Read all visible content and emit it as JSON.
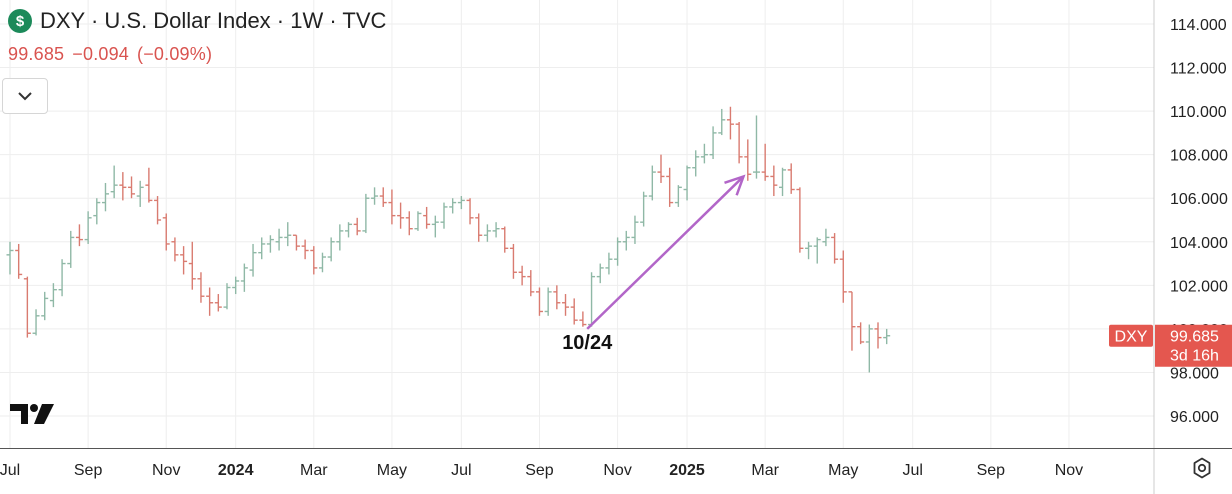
{
  "header": {
    "symbol_icon": "dollar-icon",
    "title": "DXY · U.S. Dollar Index · 1W · TVC",
    "price": "99.685",
    "change": "−0.094",
    "change_pct": "(−0.09%)"
  },
  "controls": {
    "collapse_icon": "chevron-down-icon",
    "settings_icon": "gear-icon",
    "logo_icon": "tradingview-logo-icon"
  },
  "price_tag": {
    "symbol": "DXY",
    "value": "99.685",
    "countdown": "3d 16h"
  },
  "colors": {
    "up": "#8fb8a6",
    "down": "#d97b70",
    "annotation": "#b266c8",
    "grid": "#eeeeee",
    "tag_red": "#e4574f"
  },
  "chart_data": {
    "type": "bar",
    "title": "DXY · U.S. Dollar Index · 1W · TVC",
    "y_ticks": [
      "114.000",
      "112.000",
      "110.000",
      "108.000",
      "106.000",
      "104.000",
      "102.000",
      "100.000",
      "98.000",
      "96.000"
    ],
    "ylim": [
      94.9,
      115.1
    ],
    "x_ticks": [
      "Jul",
      "Sep",
      "Nov",
      "2024",
      "Mar",
      "May",
      "Jul",
      "Sep",
      "Nov",
      "2025",
      "Mar",
      "May",
      "Jul",
      "Sep",
      "Nov"
    ],
    "x_bold": [
      "2024",
      "2025"
    ],
    "x_tick_weeks": [
      0,
      9,
      18,
      26,
      35,
      44,
      52,
      61,
      70,
      78,
      87,
      96,
      104,
      113,
      122
    ],
    "series": [
      {
        "values": [
          [
            0,
            103.4,
            104.0,
            102.5,
            103.6
          ],
          [
            1,
            103.6,
            103.9,
            102.3,
            102.5
          ],
          [
            2,
            102.3,
            102.4,
            99.6,
            99.8
          ],
          [
            3,
            99.8,
            100.9,
            99.7,
            100.6
          ],
          [
            4,
            100.6,
            101.7,
            100.4,
            101.4
          ],
          [
            5,
            101.3,
            102.1,
            101.0,
            101.8
          ],
          [
            6,
            101.8,
            103.2,
            101.5,
            103.0
          ],
          [
            7,
            103.0,
            104.5,
            102.8,
            104.2
          ],
          [
            8,
            104.2,
            104.8,
            103.8,
            104.1
          ],
          [
            9,
            104.1,
            105.4,
            103.9,
            105.1
          ],
          [
            10,
            105.2,
            106.0,
            104.8,
            105.8
          ],
          [
            11,
            105.8,
            106.7,
            105.4,
            106.2
          ],
          [
            12,
            106.3,
            107.5,
            106.0,
            106.6
          ],
          [
            13,
            106.6,
            107.2,
            105.9,
            106.5
          ],
          [
            14,
            106.5,
            107.0,
            106.0,
            106.2
          ],
          [
            15,
            106.1,
            106.8,
            105.6,
            106.5
          ],
          [
            16,
            106.6,
            107.4,
            105.8,
            105.9
          ],
          [
            17,
            105.9,
            106.1,
            104.8,
            105.0
          ],
          [
            18,
            105.1,
            105.3,
            103.6,
            103.9
          ],
          [
            19,
            104.0,
            104.2,
            103.1,
            103.4
          ],
          [
            20,
            103.4,
            103.8,
            102.5,
            103.1
          ],
          [
            21,
            103.0,
            104.0,
            101.8,
            102.3
          ],
          [
            22,
            102.3,
            102.6,
            101.2,
            101.5
          ],
          [
            23,
            101.5,
            101.9,
            100.6,
            101.2
          ],
          [
            24,
            101.2,
            101.6,
            100.8,
            101.0
          ],
          [
            25,
            101.0,
            102.1,
            100.9,
            101.9
          ],
          [
            26,
            101.9,
            102.4,
            101.6,
            102.2
          ],
          [
            27,
            102.2,
            103.0,
            101.7,
            102.8
          ],
          [
            28,
            102.7,
            103.9,
            102.4,
            103.5
          ],
          [
            29,
            103.5,
            104.2,
            103.2,
            103.9
          ],
          [
            30,
            103.9,
            104.3,
            103.5,
            104.1
          ],
          [
            31,
            104.0,
            104.6,
            103.6,
            104.2
          ],
          [
            32,
            104.2,
            104.9,
            103.8,
            104.3
          ],
          [
            33,
            104.3,
            104.3,
            103.6,
            103.8
          ],
          [
            34,
            103.8,
            104.1,
            103.2,
            103.6
          ],
          [
            35,
            103.6,
            103.8,
            102.5,
            102.8
          ],
          [
            36,
            102.8,
            103.5,
            102.6,
            103.3
          ],
          [
            37,
            103.3,
            104.2,
            103.1,
            104.0
          ],
          [
            38,
            104.0,
            104.8,
            103.6,
            104.5
          ],
          [
            39,
            104.5,
            104.9,
            104.2,
            104.8
          ],
          [
            40,
            104.8,
            105.1,
            104.3,
            104.5
          ],
          [
            41,
            104.5,
            106.2,
            104.4,
            106.0
          ],
          [
            42,
            106.0,
            106.5,
            105.7,
            106.1
          ],
          [
            43,
            106.1,
            106.5,
            105.6,
            105.8
          ],
          [
            44,
            105.8,
            106.4,
            104.8,
            105.2
          ],
          [
            45,
            105.2,
            105.8,
            104.6,
            105.1
          ],
          [
            46,
            105.1,
            105.4,
            104.3,
            104.6
          ],
          [
            47,
            104.6,
            105.4,
            104.5,
            105.3
          ],
          [
            48,
            105.2,
            105.6,
            104.6,
            104.8
          ],
          [
            49,
            104.8,
            105.2,
            104.2,
            104.9
          ],
          [
            50,
            104.9,
            105.8,
            104.6,
            105.6
          ],
          [
            51,
            105.6,
            106.0,
            105.3,
            105.8
          ],
          [
            52,
            105.8,
            106.1,
            105.5,
            105.9
          ],
          [
            53,
            105.9,
            106.0,
            104.8,
            105.1
          ],
          [
            54,
            105.1,
            105.3,
            104.0,
            104.3
          ],
          [
            55,
            104.3,
            104.8,
            104.0,
            104.5
          ],
          [
            56,
            104.5,
            104.9,
            104.2,
            104.6
          ],
          [
            57,
            104.6,
            104.7,
            103.5,
            103.7
          ],
          [
            58,
            103.7,
            103.9,
            102.3,
            102.6
          ],
          [
            59,
            102.6,
            102.9,
            102.0,
            102.4
          ],
          [
            60,
            102.4,
            102.7,
            101.5,
            101.7
          ],
          [
            61,
            101.7,
            101.9,
            100.6,
            100.8
          ],
          [
            62,
            100.8,
            101.9,
            100.6,
            101.7
          ],
          [
            63,
            101.7,
            102.0,
            100.9,
            101.2
          ],
          [
            64,
            101.2,
            101.6,
            100.6,
            101.0
          ],
          [
            65,
            101.0,
            101.4,
            100.2,
            100.4
          ],
          [
            66,
            100.4,
            100.8,
            100.1,
            100.2
          ],
          [
            67,
            100.2,
            102.6,
            100.1,
            102.4
          ],
          [
            68,
            102.4,
            103.0,
            102.1,
            102.8
          ],
          [
            69,
            102.8,
            103.5,
            102.5,
            103.2
          ],
          [
            70,
            103.2,
            104.2,
            102.9,
            104.0
          ],
          [
            71,
            104.0,
            104.5,
            103.6,
            104.2
          ],
          [
            72,
            104.2,
            105.2,
            103.9,
            104.9
          ],
          [
            73,
            104.9,
            106.3,
            104.7,
            106.1
          ],
          [
            74,
            106.1,
            107.5,
            105.9,
            107.2
          ],
          [
            75,
            107.2,
            108.0,
            106.7,
            107.0
          ],
          [
            76,
            107.0,
            107.4,
            105.6,
            105.8
          ],
          [
            77,
            105.8,
            106.6,
            105.6,
            106.5
          ],
          [
            78,
            106.4,
            107.5,
            105.9,
            107.4
          ],
          [
            79,
            107.4,
            108.2,
            107.0,
            107.9
          ],
          [
            80,
            107.9,
            108.5,
            107.6,
            108.0
          ],
          [
            81,
            108.0,
            109.3,
            107.8,
            109.0
          ],
          [
            82,
            109.0,
            110.1,
            108.9,
            109.6
          ],
          [
            83,
            109.6,
            110.2,
            108.7,
            109.4
          ],
          [
            84,
            109.4,
            109.5,
            107.6,
            107.9
          ],
          [
            85,
            107.9,
            108.7,
            106.8,
            107.1
          ],
          [
            86,
            107.2,
            109.8,
            106.9,
            107.2
          ],
          [
            87,
            107.2,
            108.5,
            106.8,
            107.0
          ],
          [
            88,
            107.0,
            107.5,
            106.1,
            106.6
          ],
          [
            89,
            106.5,
            107.4,
            106.1,
            107.3
          ],
          [
            90,
            107.3,
            107.6,
            106.2,
            106.4
          ],
          [
            91,
            106.4,
            106.5,
            103.5,
            103.7
          ],
          [
            92,
            103.7,
            104.0,
            103.2,
            103.8
          ],
          [
            93,
            103.8,
            104.2,
            103.0,
            104.1
          ],
          [
            94,
            104.0,
            104.6,
            103.8,
            104.2
          ],
          [
            95,
            104.2,
            104.4,
            103.0,
            103.2
          ],
          [
            96,
            103.2,
            103.6,
            101.2,
            101.7
          ],
          [
            97,
            101.7,
            101.7,
            99.0,
            100.1
          ],
          [
            98,
            100.1,
            100.3,
            99.3,
            99.4
          ],
          [
            99,
            99.4,
            100.2,
            98.0,
            100.0
          ],
          [
            100,
            100.0,
            100.3,
            99.1,
            99.6
          ],
          [
            101,
            99.6,
            100.0,
            99.3,
            99.685
          ]
        ]
      }
    ],
    "series_format": "[week, open, high, low, close]",
    "annotations": [
      {
        "type": "label",
        "text": "10/24"
      },
      {
        "type": "arrow",
        "from": [
          66.5,
          100.0
        ],
        "to": [
          84.5,
          107.0
        ]
      }
    ],
    "grid": true,
    "legend": "none"
  }
}
